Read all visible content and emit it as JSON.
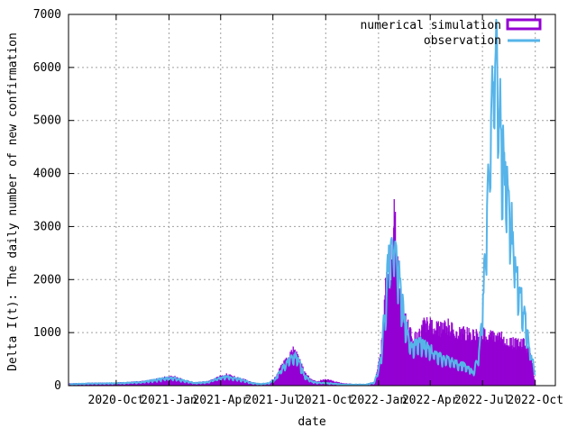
{
  "chart_data": {
    "type": "bar",
    "title": "",
    "xlabel": "date",
    "ylabel": "Delta I(t): The daily number of new confirmation",
    "x_axis_type": "date",
    "xlim": [
      "2020-07-10",
      "2022-11-05"
    ],
    "ylim": [
      0,
      7000
    ],
    "grid": true,
    "legend_position": "top-right",
    "x_ticks": [
      {
        "date": "2020-10-01",
        "label": "2020-Oct"
      },
      {
        "date": "2021-01-01",
        "label": "2021-Jan"
      },
      {
        "date": "2021-04-01",
        "label": "2021-Apr"
      },
      {
        "date": "2021-07-01",
        "label": "2021-Jul"
      },
      {
        "date": "2021-10-01",
        "label": "2021-Oct"
      },
      {
        "date": "2022-01-01",
        "label": "2022-Jan"
      },
      {
        "date": "2022-04-01",
        "label": "2022-Apr"
      },
      {
        "date": "2022-07-01",
        "label": "2022-Jul"
      },
      {
        "date": "2022-10-01",
        "label": "2022-Oct"
      }
    ],
    "y_ticks": [
      0,
      1000,
      2000,
      3000,
      4000,
      5000,
      6000,
      7000
    ],
    "series": [
      {
        "name": "numerical simulation",
        "style": "bars",
        "color": "#9400d3",
        "points": [
          [
            "2020-07-12",
            40
          ],
          [
            "2020-08-15",
            50
          ],
          [
            "2020-09-20",
            50
          ],
          [
            "2020-10-15",
            60
          ],
          [
            "2020-11-15",
            80
          ],
          [
            "2020-12-10",
            120
          ],
          [
            "2020-12-25",
            160
          ],
          [
            "2021-01-10",
            170
          ],
          [
            "2021-01-25",
            110
          ],
          [
            "2021-02-15",
            60
          ],
          [
            "2021-03-10",
            80
          ],
          [
            "2021-03-25",
            150
          ],
          [
            "2021-04-10",
            210
          ],
          [
            "2021-04-25",
            170
          ],
          [
            "2021-05-10",
            120
          ],
          [
            "2021-05-25",
            60
          ],
          [
            "2021-06-10",
            40
          ],
          [
            "2021-06-25",
            60
          ],
          [
            "2021-07-05",
            150
          ],
          [
            "2021-07-15",
            350
          ],
          [
            "2021-07-25",
            500
          ],
          [
            "2021-08-02",
            620
          ],
          [
            "2021-08-07",
            680
          ],
          [
            "2021-08-15",
            500
          ],
          [
            "2021-08-25",
            250
          ],
          [
            "2021-09-05",
            120
          ],
          [
            "2021-09-15",
            80
          ],
          [
            "2021-10-01",
            120
          ],
          [
            "2021-10-15",
            80
          ],
          [
            "2021-11-01",
            40
          ],
          [
            "2021-11-20",
            30
          ],
          [
            "2021-12-10",
            30
          ],
          [
            "2021-12-25",
            80
          ],
          [
            "2022-01-05",
            600
          ],
          [
            "2022-01-12",
            1800
          ],
          [
            "2022-01-18",
            2300
          ],
          [
            "2022-01-22",
            2100
          ],
          [
            "2022-01-26",
            3000
          ],
          [
            "2022-01-29",
            3500
          ],
          [
            "2022-02-02",
            2300
          ],
          [
            "2022-02-08",
            1700
          ],
          [
            "2022-02-15",
            1400
          ],
          [
            "2022-02-22",
            1100
          ],
          [
            "2022-03-01",
            900
          ],
          [
            "2022-03-10",
            1000
          ],
          [
            "2022-03-20",
            1150
          ],
          [
            "2022-04-01",
            1150
          ],
          [
            "2022-04-15",
            1100
          ],
          [
            "2022-05-01",
            1150
          ],
          [
            "2022-05-15",
            1000
          ],
          [
            "2022-06-01",
            1000
          ],
          [
            "2022-06-15",
            950
          ],
          [
            "2022-07-01",
            1000
          ],
          [
            "2022-07-15",
            950
          ],
          [
            "2022-08-01",
            920
          ],
          [
            "2022-08-15",
            850
          ],
          [
            "2022-09-01",
            800
          ],
          [
            "2022-09-10",
            820
          ],
          [
            "2022-09-20",
            650
          ],
          [
            "2022-09-26",
            450
          ],
          [
            "2022-09-30",
            0
          ]
        ]
      },
      {
        "name": "observation",
        "style": "line",
        "color": "#56b4e9",
        "points": [
          [
            "2020-07-12",
            30
          ],
          [
            "2020-08-15",
            40
          ],
          [
            "2020-09-20",
            45
          ],
          [
            "2020-10-15",
            50
          ],
          [
            "2020-11-15",
            70
          ],
          [
            "2020-12-10",
            110
          ],
          [
            "2020-12-25",
            140
          ],
          [
            "2021-01-10",
            150
          ],
          [
            "2021-01-25",
            100
          ],
          [
            "2021-02-15",
            50
          ],
          [
            "2021-03-10",
            70
          ],
          [
            "2021-03-25",
            130
          ],
          [
            "2021-04-10",
            180
          ],
          [
            "2021-04-25",
            150
          ],
          [
            "2021-05-10",
            110
          ],
          [
            "2021-05-25",
            50
          ],
          [
            "2021-06-10",
            30
          ],
          [
            "2021-06-25",
            50
          ],
          [
            "2021-07-05",
            120
          ],
          [
            "2021-07-15",
            300
          ],
          [
            "2021-07-25",
            450
          ],
          [
            "2021-08-02",
            550
          ],
          [
            "2021-08-07",
            600
          ],
          [
            "2021-08-15",
            480
          ],
          [
            "2021-08-25",
            200
          ],
          [
            "2021-09-05",
            90
          ],
          [
            "2021-09-15",
            60
          ],
          [
            "2021-10-01",
            50
          ],
          [
            "2021-10-15",
            40
          ],
          [
            "2021-11-01",
            20
          ],
          [
            "2021-11-20",
            20
          ],
          [
            "2021-12-10",
            20
          ],
          [
            "2021-12-25",
            60
          ],
          [
            "2022-01-05",
            500
          ],
          [
            "2022-01-12",
            1500
          ],
          [
            "2022-01-18",
            2400
          ],
          [
            "2022-01-22",
            2700
          ],
          [
            "2022-01-26",
            2900
          ],
          [
            "2022-01-29",
            2800
          ],
          [
            "2022-02-02",
            2500
          ],
          [
            "2022-02-08",
            1900
          ],
          [
            "2022-02-15",
            1300
          ],
          [
            "2022-02-22",
            900
          ],
          [
            "2022-03-01",
            700
          ],
          [
            "2022-03-10",
            900
          ],
          [
            "2022-03-20",
            800
          ],
          [
            "2022-04-01",
            700
          ],
          [
            "2022-04-15",
            600
          ],
          [
            "2022-05-01",
            500
          ],
          [
            "2022-05-15",
            450
          ],
          [
            "2022-06-01",
            400
          ],
          [
            "2022-06-15",
            250
          ],
          [
            "2022-06-25",
            600
          ],
          [
            "2022-07-01",
            1500
          ],
          [
            "2022-07-08",
            3000
          ],
          [
            "2022-07-15",
            4800
          ],
          [
            "2022-07-20",
            6200
          ],
          [
            "2022-07-24",
            6900
          ],
          [
            "2022-07-28",
            6000
          ],
          [
            "2022-08-01",
            5300
          ],
          [
            "2022-08-07",
            4200
          ],
          [
            "2022-08-15",
            3600
          ],
          [
            "2022-08-22",
            3000
          ],
          [
            "2022-09-01",
            2000
          ],
          [
            "2022-09-10",
            1500
          ],
          [
            "2022-09-20",
            800
          ],
          [
            "2022-09-26",
            500
          ],
          [
            "2022-09-30",
            300
          ]
        ]
      }
    ]
  }
}
